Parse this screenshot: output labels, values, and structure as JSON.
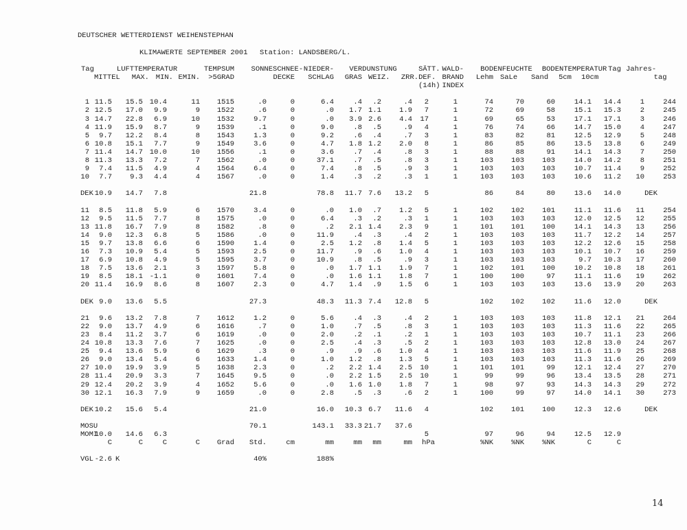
{
  "page": {
    "title": "DEUTSCHER WETTERDIENST WEIHENSTEPHAN",
    "subtitle": "KLIMAWERTE SEPTEMBER 2001",
    "station": "Station: LANDSBERG/L.",
    "page_number": "14"
  },
  "table": {
    "header": {
      "row1": {
        "tag": "Tag",
        "lufttemperatur": "LUFTTEMPERATUR",
        "tempsum": "TEMPSUM",
        "sonne": "SONNE",
        "schnee": "SCHNEE-",
        "nieder": "NIEDER-",
        "verdunstung": "VERDUNSTUNG",
        "saett": "SÄTT.",
        "wald": "WALD-",
        "bodenfeuchte": "BODENFEUCHTE",
        "bodentemperatur": "BODENTEMPERATUR",
        "tag2": "Tag",
        "jahres": "Jahres-"
      },
      "row2": {
        "mittel": "MITTEL",
        "max": "MAX.",
        "min": "MIN.",
        "emin": "EMIN.",
        "grad5": ">5GRAD",
        "decke": "DECKE",
        "schlag": "SCHLAG",
        "gras": "GRAS",
        "weiz": "WEIZ.",
        "zrr": "ZRR.",
        "def": "DEF.",
        "brand": "BRAND",
        "lehm": "Lehm",
        "sale": "SaLe",
        "sand": "Sand",
        "cm5": "5cm",
        "cm10": "10cm",
        "tag": "tag"
      },
      "row3": {
        "h14": "(14h)",
        "index": "INDEX"
      }
    },
    "rows": [
      {
        "type": "blank"
      },
      {
        "type": "day",
        "cells": [
          "1",
          "11.5",
          "15.5",
          "10.4",
          "11",
          "1515",
          ".0",
          "0",
          "6.4",
          ".4",
          ".2",
          ".4",
          "2",
          "1",
          "74",
          "70",
          "60",
          "14.1",
          "14.4",
          "1",
          "244"
        ]
      },
      {
        "type": "day",
        "cells": [
          "2",
          "12.5",
          "17.0",
          "9.9",
          "9",
          "1522",
          ".6",
          "0",
          ".0",
          "1.7",
          "1.1",
          "1.9",
          "7",
          "1",
          "72",
          "69",
          "58",
          "15.1",
          "15.3",
          "2",
          "245"
        ]
      },
      {
        "type": "day",
        "cells": [
          "3",
          "14.7",
          "22.8",
          "6.9",
          "10",
          "1532",
          "9.7",
          "0",
          ".0",
          "3.9",
          "2.6",
          "4.4",
          "17",
          "1",
          "69",
          "65",
          "53",
          "17.1",
          "17.1",
          "3",
          "246"
        ]
      },
      {
        "type": "day",
        "cells": [
          "4",
          "11.9",
          "15.9",
          "8.7",
          "9",
          "1539",
          ".1",
          "0",
          "9.0",
          ".8",
          ".5",
          ".9",
          "4",
          "1",
          "76",
          "74",
          "66",
          "14.7",
          "15.0",
          "4",
          "247"
        ]
      },
      {
        "type": "day",
        "cells": [
          "5",
          "9.7",
          "12.2",
          "8.4",
          "8",
          "1543",
          "1.3",
          "0",
          "9.2",
          ".6",
          ".4",
          ".7",
          "3",
          "1",
          "83",
          "82",
          "81",
          "12.5",
          "12.9",
          "5",
          "248"
        ]
      },
      {
        "type": "day",
        "cells": [
          "6",
          "10.8",
          "15.1",
          "7.7",
          "9",
          "1549",
          "3.6",
          "0",
          "4.7",
          "1.8",
          "1.2",
          "2.0",
          "8",
          "1",
          "86",
          "85",
          "86",
          "13.5",
          "13.8",
          "6",
          "249"
        ]
      },
      {
        "type": "day",
        "cells": [
          "7",
          "11.4",
          "14.7",
          "10.0",
          "10",
          "1556",
          ".1",
          "0",
          "3.6",
          ".7",
          ".4",
          ".8",
          "3",
          "1",
          "88",
          "88",
          "91",
          "14.1",
          "14.3",
          "7",
          "250"
        ]
      },
      {
        "type": "day",
        "cells": [
          "8",
          "11.3",
          "13.3",
          "7.2",
          "7",
          "1562",
          ".0",
          "0",
          "37.1",
          ".7",
          ".5",
          ".8",
          "3",
          "1",
          "103",
          "103",
          "103",
          "14.0",
          "14.2",
          "8",
          "251"
        ]
      },
      {
        "type": "day",
        "cells": [
          "9",
          "7.4",
          "11.5",
          "4.9",
          "4",
          "1564",
          "6.4",
          "0",
          "7.4",
          ".8",
          ".5",
          ".9",
          "3",
          "1",
          "103",
          "103",
          "103",
          "10.7",
          "11.4",
          "9",
          "252"
        ]
      },
      {
        "type": "day",
        "cells": [
          "10",
          "7.7",
          "9.3",
          "4.4",
          "4",
          "1567",
          ".0",
          "0",
          "1.4",
          ".3",
          ".2",
          ".3",
          "1",
          "1",
          "103",
          "103",
          "103",
          "10.6",
          "11.2",
          "10",
          "253"
        ]
      },
      {
        "type": "blank"
      },
      {
        "type": "dek",
        "cells": [
          "DEK",
          "10.9",
          "14.7",
          "7.8",
          "",
          "",
          "21.8",
          "",
          "78.8",
          "11.7",
          "7.6",
          "13.2",
          "5",
          "",
          "86",
          "84",
          "80",
          "13.6",
          "14.0",
          "",
          "DEK"
        ]
      },
      {
        "type": "blank"
      },
      {
        "type": "day",
        "cells": [
          "11",
          "8.5",
          "11.8",
          "5.9",
          "6",
          "1570",
          "3.4",
          "0",
          ".0",
          "1.0",
          ".7",
          "1.2",
          "5",
          "1",
          "102",
          "102",
          "101",
          "11.1",
          "11.6",
          "11",
          "254"
        ]
      },
      {
        "type": "day",
        "cells": [
          "12",
          "9.5",
          "11.5",
          "7.7",
          "8",
          "1575",
          ".0",
          "0",
          "6.4",
          ".3",
          ".2",
          ".3",
          "1",
          "1",
          "103",
          "103",
          "103",
          "12.0",
          "12.5",
          "12",
          "255"
        ]
      },
      {
        "type": "day",
        "cells": [
          "13",
          "11.8",
          "16.7",
          "7.9",
          "8",
          "1582",
          ".8",
          "0",
          ".2",
          "2.1",
          "1.4",
          "2.3",
          "9",
          "1",
          "101",
          "101",
          "100",
          "14.1",
          "14.3",
          "13",
          "256"
        ]
      },
      {
        "type": "day",
        "cells": [
          "14",
          "9.0",
          "12.3",
          "6.8",
          "5",
          "1586",
          ".0",
          "0",
          "11.9",
          ".4",
          ".3",
          ".4",
          "2",
          "1",
          "103",
          "103",
          "103",
          "11.7",
          "12.2",
          "14",
          "257"
        ]
      },
      {
        "type": "day",
        "cells": [
          "15",
          "9.7",
          "13.8",
          "6.6",
          "6",
          "1590",
          "1.4",
          "0",
          "2.5",
          "1.2",
          ".8",
          "1.4",
          "5",
          "1",
          "103",
          "103",
          "103",
          "12.2",
          "12.6",
          "15",
          "258"
        ]
      },
      {
        "type": "day",
        "cells": [
          "16",
          "7.3",
          "10.9",
          "5.4",
          "5",
          "1593",
          "2.5",
          "0",
          "11.7",
          ".9",
          ".6",
          "1.0",
          "4",
          "1",
          "103",
          "103",
          "103",
          "10.1",
          "10.7",
          "16",
          "259"
        ]
      },
      {
        "type": "day",
        "cells": [
          "17",
          "6.9",
          "10.8",
          "4.9",
          "5",
          "1595",
          "3.7",
          "0",
          "10.9",
          ".8",
          ".5",
          ".9",
          "3",
          "1",
          "103",
          "103",
          "103",
          "9.7",
          "10.3",
          "17",
          "260"
        ]
      },
      {
        "type": "day",
        "cells": [
          "18",
          "7.5",
          "13.6",
          "2.1",
          "3",
          "1597",
          "5.8",
          "0",
          ".0",
          "1.7",
          "1.1",
          "1.9",
          "7",
          "1",
          "102",
          "101",
          "100",
          "10.2",
          "10.8",
          "18",
          "261"
        ]
      },
      {
        "type": "day",
        "cells": [
          "19",
          "8.5",
          "18.1",
          "-1.1",
          "0",
          "1601",
          "7.4",
          "0",
          ".0",
          "1.6",
          "1.1",
          "1.8",
          "7",
          "1",
          "100",
          "100",
          "97",
          "11.1",
          "11.6",
          "19",
          "262"
        ]
      },
      {
        "type": "day",
        "cells": [
          "20",
          "11.4",
          "16.9",
          "8.6",
          "8",
          "1607",
          "2.3",
          "0",
          "4.7",
          "1.4",
          ".9",
          "1.5",
          "6",
          "1",
          "103",
          "103",
          "103",
          "13.6",
          "13.9",
          "20",
          "263"
        ]
      },
      {
        "type": "blank"
      },
      {
        "type": "dek",
        "cells": [
          "DEK",
          "9.0",
          "13.6",
          "5.5",
          "",
          "",
          "27.3",
          "",
          "48.3",
          "11.3",
          "7.4",
          "12.8",
          "5",
          "",
          "102",
          "102",
          "102",
          "11.6",
          "12.0",
          "",
          "DEK"
        ]
      },
      {
        "type": "blank"
      },
      {
        "type": "day",
        "cells": [
          "21",
          "9.6",
          "13.2",
          "7.8",
          "7",
          "1612",
          "1.2",
          "0",
          "5.6",
          ".4",
          ".3",
          ".4",
          "2",
          "1",
          "103",
          "103",
          "103",
          "11.8",
          "12.1",
          "21",
          "264"
        ]
      },
      {
        "type": "day",
        "cells": [
          "22",
          "9.0",
          "13.7",
          "4.9",
          "6",
          "1616",
          ".7",
          "0",
          "1.0",
          ".7",
          ".5",
          ".8",
          "3",
          "1",
          "103",
          "103",
          "103",
          "11.3",
          "11.6",
          "22",
          "265"
        ]
      },
      {
        "type": "day",
        "cells": [
          "23",
          "8.4",
          "11.2",
          "3.7",
          "6",
          "1619",
          ".0",
          "0",
          "2.0",
          ".2",
          ".1",
          ".2",
          "1",
          "1",
          "103",
          "103",
          "103",
          "10.7",
          "11.1",
          "23",
          "266"
        ]
      },
      {
        "type": "day",
        "cells": [
          "24",
          "10.8",
          "13.3",
          "7.6",
          "7",
          "1625",
          ".0",
          "0",
          "2.5",
          ".4",
          ".3",
          ".5",
          "2",
          "1",
          "103",
          "103",
          "103",
          "12.8",
          "13.0",
          "24",
          "267"
        ]
      },
      {
        "type": "day",
        "cells": [
          "25",
          "9.4",
          "13.6",
          "5.9",
          "6",
          "1629",
          ".3",
          "0",
          ".9",
          ".9",
          ".6",
          "1.0",
          "4",
          "1",
          "103",
          "103",
          "103",
          "11.6",
          "11.9",
          "25",
          "268"
        ]
      },
      {
        "type": "day",
        "cells": [
          "26",
          "9.0",
          "13.4",
          "5.4",
          "6",
          "1633",
          "1.4",
          "0",
          "1.0",
          "1.2",
          ".8",
          "1.3",
          "5",
          "1",
          "103",
          "103",
          "103",
          "11.3",
          "11.6",
          "26",
          "269"
        ]
      },
      {
        "type": "day",
        "cells": [
          "27",
          "10.0",
          "19.9",
          "3.9",
          "5",
          "1638",
          "2.3",
          "0",
          ".2",
          "2.2",
          "1.4",
          "2.5",
          "10",
          "1",
          "101",
          "101",
          "99",
          "12.1",
          "12.4",
          "27",
          "270"
        ]
      },
      {
        "type": "day",
        "cells": [
          "28",
          "11.4",
          "20.9",
          "3.3",
          "7",
          "1645",
          "9.5",
          "0",
          ".0",
          "2.2",
          "1.5",
          "2.5",
          "10",
          "1",
          "99",
          "99",
          "96",
          "13.4",
          "13.5",
          "28",
          "271"
        ]
      },
      {
        "type": "day",
        "cells": [
          "29",
          "12.4",
          "20.2",
          "3.9",
          "4",
          "1652",
          "5.6",
          "0",
          ".0",
          "1.6",
          "1.0",
          "1.8",
          "7",
          "1",
          "98",
          "97",
          "93",
          "14.3",
          "14.3",
          "29",
          "272"
        ]
      },
      {
        "type": "day",
        "cells": [
          "30",
          "12.1",
          "16.3",
          "7.9",
          "9",
          "1659",
          ".0",
          "0",
          "2.8",
          ".5",
          ".3",
          ".6",
          "2",
          "1",
          "100",
          "99",
          "97",
          "14.0",
          "14.1",
          "30",
          "273"
        ]
      },
      {
        "type": "blank"
      },
      {
        "type": "dek",
        "cells": [
          "DEK",
          "10.2",
          "15.6",
          "5.4",
          "",
          "",
          "21.0",
          "",
          "16.0",
          "10.3",
          "6.7",
          "11.6",
          "4",
          "",
          "102",
          "101",
          "100",
          "12.3",
          "12.6",
          "",
          "DEK"
        ]
      },
      {
        "type": "blank"
      },
      {
        "type": "summary",
        "cells": [
          "MOSU",
          "",
          "",
          "",
          "",
          "",
          "70.1",
          "",
          "143.1",
          "33.3",
          "21.7",
          "37.6",
          "",
          "",
          "",
          "",
          "",
          "",
          "",
          "",
          ""
        ]
      },
      {
        "type": "summary",
        "cells": [
          "MOMI",
          "10.0",
          "14.6",
          "6.3",
          "",
          "",
          "",
          "",
          "",
          "",
          "",
          "",
          "5",
          "",
          "97",
          "96",
          "94",
          "12.5",
          "12.9",
          "",
          ""
        ]
      },
      {
        "type": "units",
        "cells": [
          "",
          "C",
          "C",
          "C",
          "C",
          "Grad",
          "Std.",
          "cm",
          "mm",
          "mm",
          "mm",
          "mm",
          "hPa",
          "",
          "%NK",
          "%NK",
          "%NK",
          "C",
          "C",
          "",
          ""
        ]
      },
      {
        "type": "blank"
      },
      {
        "type": "vgl",
        "cells": [
          "VGL",
          "-2.6",
          "K",
          "",
          "",
          "",
          "40%",
          "",
          "188%",
          "",
          "",
          "",
          "",
          "",
          "",
          "",
          "",
          "",
          "",
          "",
          ""
        ]
      }
    ]
  }
}
